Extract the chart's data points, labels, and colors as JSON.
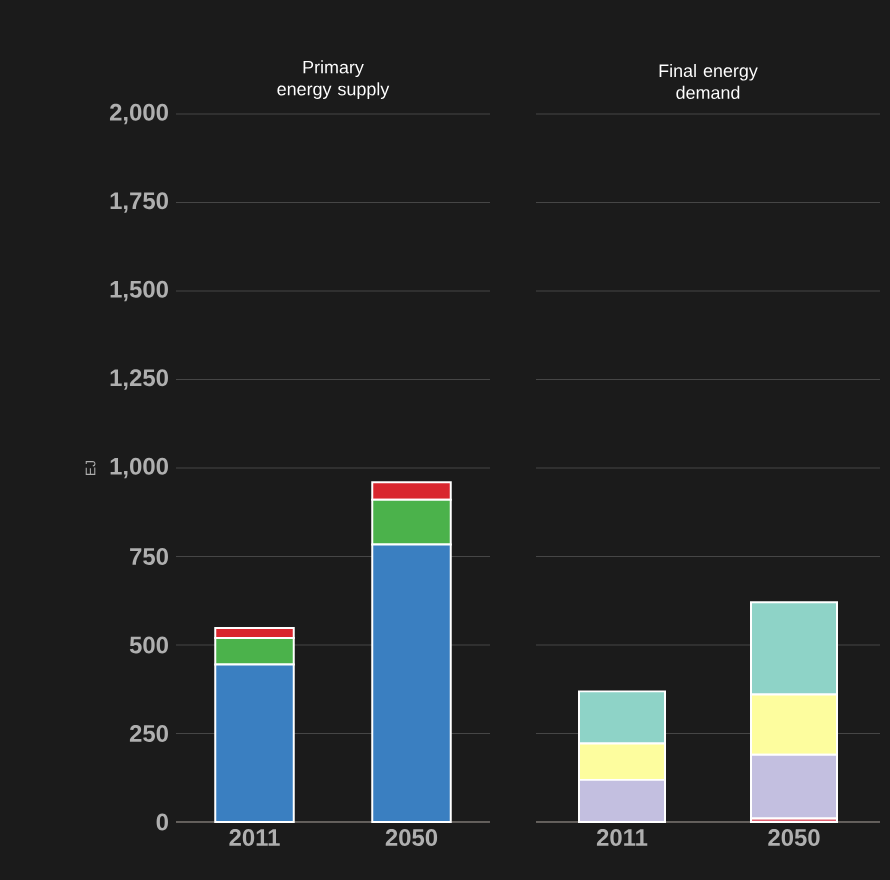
{
  "chart_data": [
    {
      "type": "bar",
      "title": "Primary energy supply",
      "ylabel": "EJ",
      "categories": [
        "2011",
        "2050"
      ],
      "stacked": true,
      "grid": "y",
      "ylim": [
        0,
        2000
      ],
      "yticks": [
        0,
        {
          "value": 250,
          "label": "250"
        },
        {
          "value": 500,
          "label": "500"
        },
        {
          "value": 750,
          "label": "750"
        },
        {
          "value": 1000,
          "label": "1,000"
        },
        {
          "value": 1250,
          "label": "1,250"
        },
        {
          "value": 1500,
          "label": "1,500"
        },
        {
          "value": 1750,
          "label": "1,750"
        },
        {
          "value": 2000,
          "label": "2,000"
        }
      ],
      "series": [
        {
          "color": "#3a7fc1",
          "values": [
            445,
            784
          ]
        },
        {
          "color": "#4bb24b",
          "values": [
            75,
            126
          ]
        },
        {
          "color": "#d9262e",
          "values": [
            28,
            50
          ]
        }
      ]
    },
    {
      "type": "bar",
      "title": "Final energy demand",
      "categories": [
        "2011",
        "2050"
      ],
      "stacked": true,
      "grid": "y",
      "tick_labels": "x",
      "ylim": [
        0,
        2000
      ],
      "yticks": [
        0,
        250,
        500,
        750,
        1000,
        1250,
        1500,
        1750,
        2000
      ],
      "series": [
        {
          "color": "#e06070",
          "values": [
            null,
            10
          ]
        },
        {
          "color": "#c3bfe0",
          "values": [
            119,
            180
          ]
        },
        {
          "color": "#fdfd9e",
          "values": [
            103,
            170
          ]
        },
        {
          "color": "#8ed3c7",
          "values": [
            147,
            261
          ]
        }
      ]
    }
  ]
}
